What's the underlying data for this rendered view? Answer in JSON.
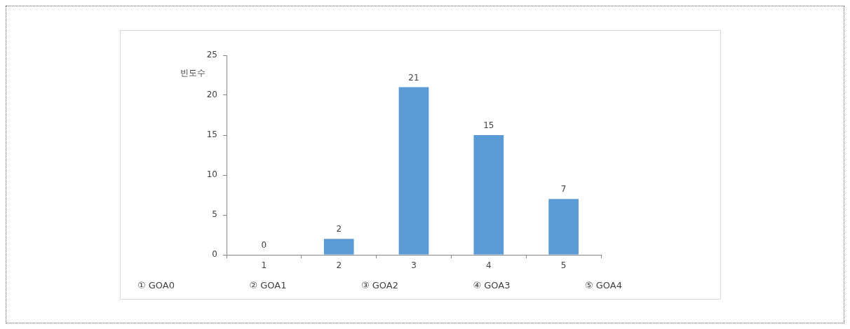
{
  "chart_data": {
    "type": "bar",
    "ylabel": "빈도수",
    "categories": [
      "1",
      "2",
      "3",
      "4",
      "5"
    ],
    "values": [
      0,
      2,
      21,
      15,
      7
    ],
    "color": "#5b9bd5",
    "ylim": [
      0,
      25
    ],
    "yticks": [
      0,
      5,
      10,
      15,
      20,
      25
    ],
    "grid": false,
    "legend": false,
    "data_labels": true,
    "annotations": [
      "① GOA0",
      "② GOA1",
      "③ GOA2",
      "④ GOA3",
      "⑤ GOA4"
    ]
  }
}
